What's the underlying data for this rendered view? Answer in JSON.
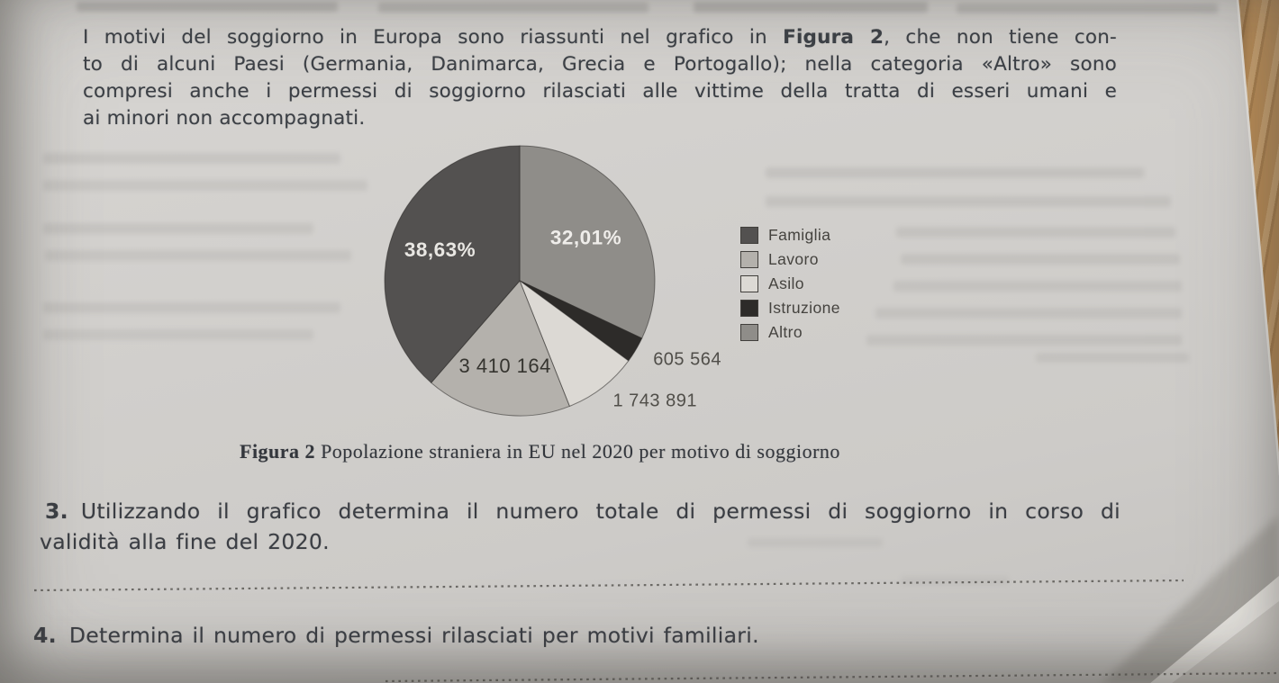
{
  "page": {
    "intro": {
      "l1a": "I motivi del soggiorno in Europa sono riassunti nel grafico in ",
      "l1b": "Figura 2",
      "l1c": ", che non tiene con-",
      "l2": "to di alcuni Paesi (Germania, Danimarca, Grecia e Portogallo); nella categoria «Altro» sono",
      "l3": "compresi anche i permessi di soggiorno rilasciati alle vittime della tratta di esseri umani e",
      "l4": "ai minori non accompagnati."
    },
    "figure_caption": {
      "bold": "Figura 2",
      "rest": " Popolazione straniera in EU nel 2020 per motivo di soggiorno"
    },
    "questions": [
      {
        "number": "3.",
        "line1": "Utilizzando il grafico determina il numero totale di permessi di soggiorno in corso di",
        "line2": "validità alla fine del 2020."
      },
      {
        "number": "4.",
        "line1": "Determina il numero di permessi rilasciati per motivi familiari."
      }
    ]
  },
  "chart_data": {
    "type": "pie",
    "title": "Popolazione straniera in EU nel 2020 per motivo di soggiorno",
    "caption_label": "Figura 2",
    "start_angle": "12-oclock",
    "direction": "clockwise",
    "legend_position": "right",
    "legend_order": [
      "Famiglia",
      "Lavoro",
      "Asilo",
      "Istruzione",
      "Altro"
    ],
    "slices_clockwise_from_top": [
      {
        "name": "Altro",
        "pct": 32.01,
        "display": "32,01%",
        "color": "#8f8d89",
        "label_color": "#efedea",
        "label_pos": "inside",
        "label_r": 0.58
      },
      {
        "name": "Istruzione",
        "pct": 3.09,
        "value": 605564,
        "display": "605 564",
        "color": "#2d2b29",
        "label_color": "#504e49",
        "label_pos": "outside",
        "label_r": 1.15
      },
      {
        "name": "Asilo",
        "pct": 8.89,
        "value": 1743891,
        "display": "1 743 891",
        "color": "#dcd9d4",
        "label_color": "#504e49",
        "label_pos": "outside",
        "label_r": 1.13
      },
      {
        "name": "Lavoro",
        "pct": 17.38,
        "value": 3410164,
        "display": "3 410 164",
        "color": "#b4b1ac",
        "label_color": "#35342f",
        "label_pos": "inside",
        "label_r": 0.65
      },
      {
        "name": "Famiglia",
        "pct": 38.63,
        "display": "38,63%",
        "color": "#535150",
        "label_color": "#e9e7e3",
        "label_pos": "inside",
        "label_r": 0.63
      }
    ]
  }
}
